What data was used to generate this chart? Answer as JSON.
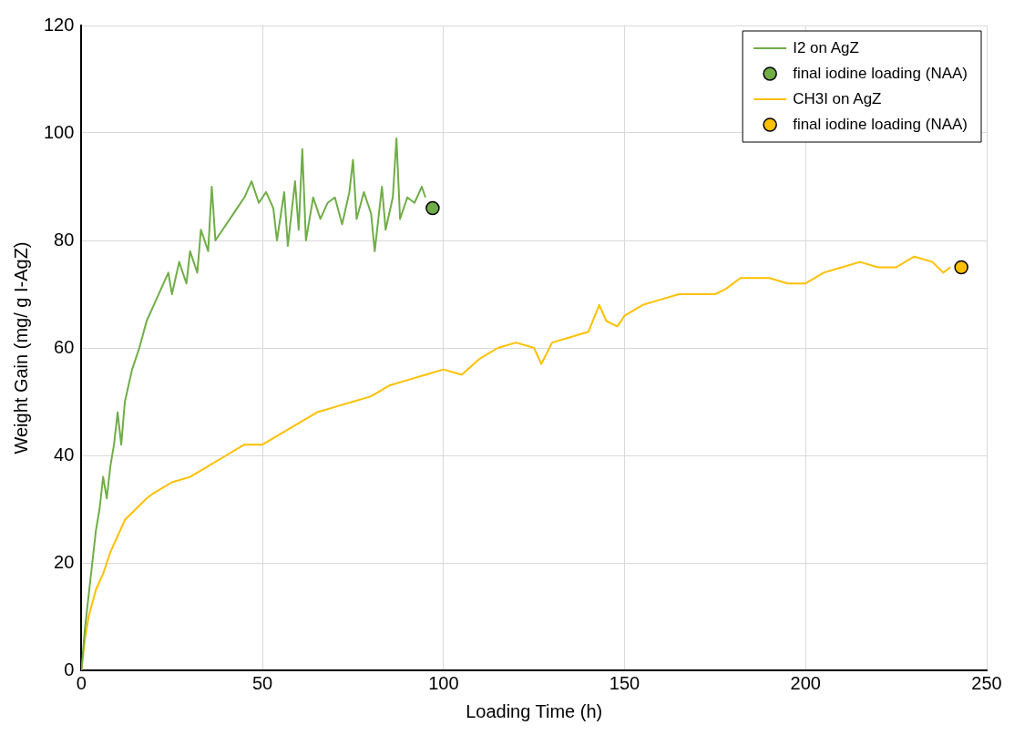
{
  "chart_data": {
    "type": "line",
    "xlabel": "Loading Time (h)",
    "ylabel": "Weight Gain (mg/ g I-AgZ)",
    "xlim": [
      0,
      250
    ],
    "xticks": [
      0,
      50,
      100,
      150,
      200,
      250
    ],
    "ylim": [
      0,
      120
    ],
    "yticks": [
      0,
      20,
      40,
      60,
      80,
      100,
      120
    ],
    "grid": true,
    "legend": "top right",
    "series": [
      {
        "name": "I2 on AgZ",
        "type": "line",
        "marker": "none",
        "color": "#70ad47",
        "x": [
          0,
          1,
          2,
          3,
          4,
          5,
          6,
          7,
          8,
          9,
          10,
          11,
          12,
          14,
          16,
          18,
          20,
          22,
          24,
          25,
          27,
          29,
          30,
          32,
          33,
          35,
          36,
          37,
          39,
          41,
          43,
          45,
          47,
          49,
          51,
          53,
          54,
          56,
          57,
          59,
          60,
          61,
          62,
          64,
          66,
          68,
          70,
          72,
          74,
          75,
          76,
          78,
          80,
          81,
          83,
          84,
          86,
          87,
          88,
          90,
          92,
          94,
          95
        ],
        "values": [
          0,
          8,
          14,
          20,
          26,
          30,
          36,
          32,
          38,
          42,
          48,
          42,
          50,
          56,
          60,
          65,
          68,
          71,
          74,
          70,
          76,
          72,
          78,
          74,
          82,
          78,
          90,
          80,
          82,
          84,
          86,
          88,
          91,
          87,
          89,
          86,
          80,
          89,
          79,
          91,
          82,
          97,
          80,
          88,
          84,
          87,
          88,
          83,
          89,
          95,
          84,
          89,
          85,
          78,
          90,
          82,
          88,
          99,
          84,
          88,
          87,
          90,
          88
        ]
      },
      {
        "name": "final iodine loading (NAA)",
        "type": "scatter",
        "marker": "circle",
        "color": "#70ad47",
        "x": [
          97
        ],
        "values": [
          86
        ]
      },
      {
        "name": "CH3I on AgZ",
        "type": "line",
        "marker": "none",
        "color": "#ffc000",
        "x": [
          0,
          1,
          2,
          4,
          6,
          8,
          10,
          12,
          15,
          18,
          20,
          25,
          30,
          35,
          40,
          45,
          50,
          55,
          60,
          65,
          70,
          75,
          80,
          85,
          90,
          95,
          100,
          105,
          110,
          115,
          120,
          125,
          127,
          130,
          135,
          140,
          143,
          145,
          148,
          150,
          155,
          160,
          165,
          170,
          175,
          178,
          182,
          185,
          190,
          195,
          200,
          205,
          210,
          215,
          220,
          225,
          230,
          235,
          238,
          240
        ],
        "values": [
          0,
          6,
          10,
          15,
          18,
          22,
          25,
          28,
          30,
          32,
          33,
          35,
          36,
          38,
          40,
          42,
          42,
          44,
          46,
          48,
          49,
          50,
          51,
          53,
          54,
          55,
          56,
          55,
          58,
          60,
          61,
          60,
          57,
          61,
          62,
          63,
          68,
          65,
          64,
          66,
          68,
          69,
          70,
          70,
          70,
          71,
          73,
          73,
          73,
          72,
          72,
          74,
          75,
          76,
          75,
          75,
          77,
          76,
          74,
          75
        ]
      },
      {
        "name": "final iodine loading (NAA)",
        "type": "scatter",
        "marker": "circle",
        "color": "#ffc000",
        "x": [
          243
        ],
        "values": [
          75
        ]
      }
    ]
  }
}
